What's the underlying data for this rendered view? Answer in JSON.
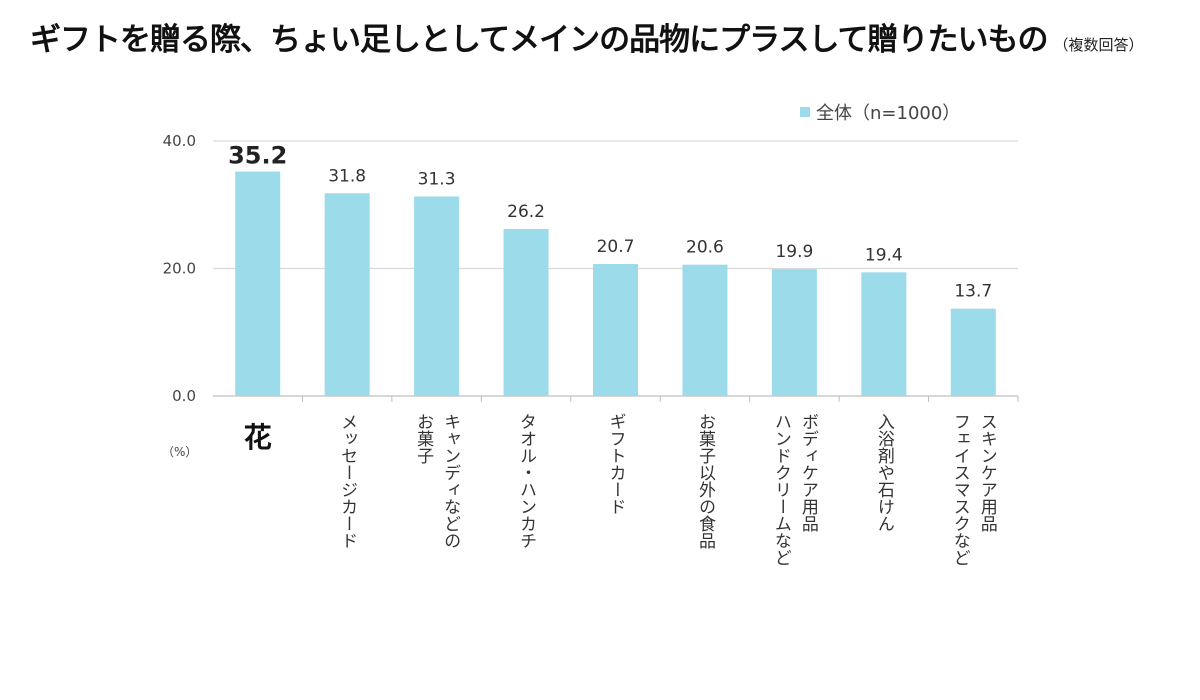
{
  "title": "ギフトを贈る際、ちょい足しとしてメインの品物にプラスして贈りたいもの",
  "subtitle": "（複数回答）",
  "unit_label": "（%）",
  "colors": {
    "bar": "#9bdbea",
    "grid": "#d9d9d9",
    "axis": "#bfbfbf"
  },
  "chart_data": {
    "type": "bar",
    "categories": [
      [
        "花"
      ],
      [
        "メッセージカード"
      ],
      [
        "キャンディなどの",
        "お菓子"
      ],
      [
        "タオル・ハンカチ"
      ],
      [
        "ギフトカード"
      ],
      [
        "お菓子以外の食品"
      ],
      [
        "ボディケア用品",
        "ハンドクリームなど"
      ],
      [
        "入浴剤や石けん"
      ],
      [
        "スキンケア用品",
        "フェイスマスクなど"
      ]
    ],
    "series": [
      {
        "name": "全体（n=1000）",
        "values": [
          35.2,
          31.8,
          31.3,
          26.2,
          20.7,
          20.6,
          19.9,
          19.4,
          13.7
        ]
      }
    ],
    "value_labels": [
      "35.2",
      "31.8",
      "31.3",
      "26.2",
      "20.7",
      "20.6",
      "19.9",
      "19.4",
      "13.7"
    ],
    "yticks": [
      0,
      20,
      40
    ],
    "ytick_labels": [
      "0.0",
      "20.0",
      "40.0"
    ],
    "ylim": [
      0,
      40
    ],
    "grid": true,
    "legend_position": "top-right",
    "highlight_index": 0
  }
}
